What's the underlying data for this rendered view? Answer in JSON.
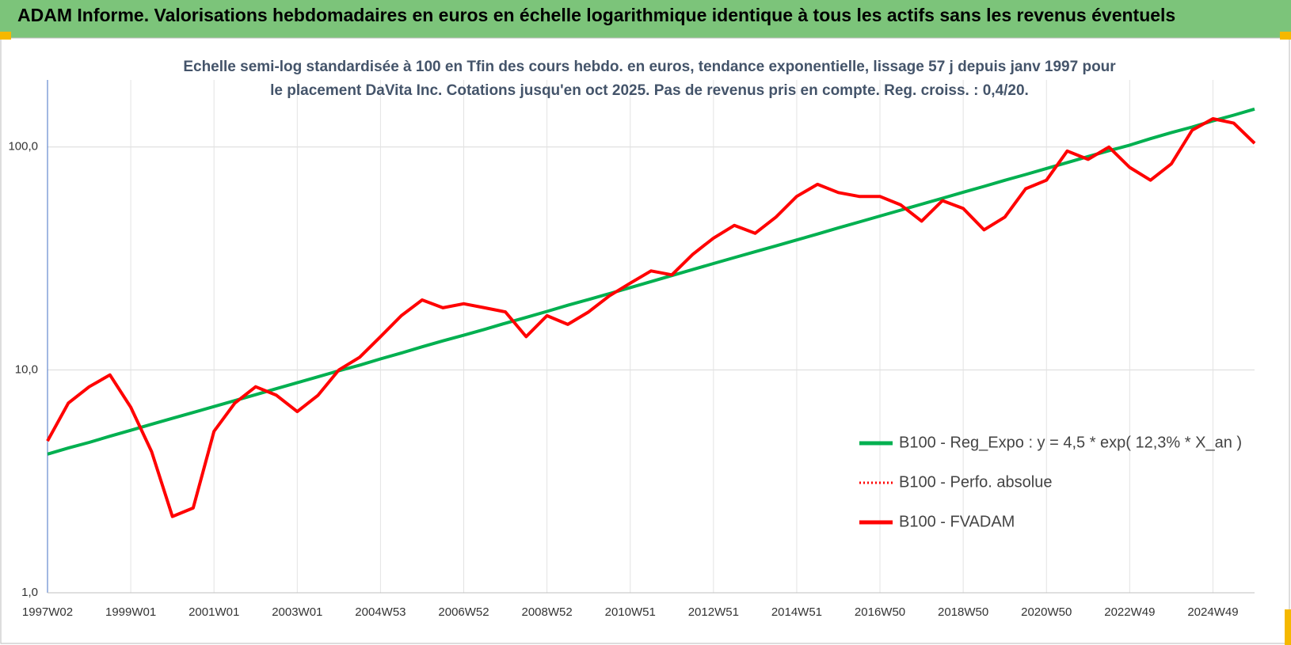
{
  "header": {
    "title": "ADAM Informe. Valorisations hebdomadaires en euros en échelle logarithmique identique à tous les actifs sans les revenus éventuels"
  },
  "chart_data": {
    "type": "line",
    "title": "Echelle semi-log standardisée à 100 en Tfin des cours hebdo. en euros, tendance exponentielle, lissage 57 j depuis janv 1997 pour le placement DaVita Inc. Cotations jusqu'en oct 2025. Pas de revenus pris en compte. Reg. croiss. : 0,4/20.",
    "log_scale": true,
    "grid": true,
    "legend_position": "right",
    "ylim": [
      1,
      200
    ],
    "yticks": [
      {
        "value": 1,
        "label": "1,0"
      },
      {
        "value": 10,
        "label": "10,0"
      },
      {
        "value": 100,
        "label": "100,0"
      }
    ],
    "categories": [
      "1997W02",
      null,
      null,
      null,
      "1999W01",
      null,
      null,
      null,
      "2001W01",
      null,
      null,
      null,
      "2003W01",
      null,
      null,
      null,
      "2004W53",
      null,
      null,
      null,
      "2006W52",
      null,
      null,
      null,
      "2008W52",
      null,
      null,
      null,
      "2010W51",
      null,
      null,
      null,
      "2012W51",
      null,
      null,
      null,
      "2014W51",
      null,
      null,
      null,
      "2016W50",
      null,
      null,
      null,
      "2018W50",
      null,
      null,
      null,
      "2020W50",
      null,
      null,
      null,
      "2022W49",
      null,
      null,
      null,
      "2024W49",
      null,
      null
    ],
    "series": [
      {
        "name": "B100 - Reg_Expo : y = 4,5 * exp( 12,3% *  X_an )",
        "color": "#00b050",
        "style": "solid",
        "values": [
          4.19,
          4.46,
          4.73,
          5.04,
          5.36,
          5.7,
          6.06,
          6.44,
          6.85,
          7.28,
          7.74,
          8.24,
          8.76,
          9.31,
          9.91,
          10.5,
          11.2,
          11.9,
          12.7,
          13.5,
          14.3,
          15.2,
          16.2,
          17.2,
          18.3,
          19.5,
          20.7,
          22.0,
          23.4,
          24.9,
          26.5,
          28.2,
          30.0,
          31.9,
          33.9,
          36.0,
          38.3,
          40.7,
          43.4,
          46.1,
          49.0,
          52.1,
          55.4,
          58.9,
          62.7,
          66.6,
          70.9,
          75.3,
          80.1,
          85.2,
          90.6,
          96.3,
          102,
          109,
          116,
          123,
          131,
          139,
          148
        ]
      },
      {
        "name": "B100 - Perfo. absolue",
        "color": "#ff0000",
        "style": "dotted",
        "values": [
          4.8,
          7.1,
          8.4,
          9.5,
          6.8,
          4.3,
          2.2,
          2.4,
          5.3,
          7.1,
          8.4,
          7.7,
          6.5,
          7.7,
          10,
          11.4,
          14.1,
          17.5,
          20.6,
          19,
          19.8,
          19,
          18.2,
          14.1,
          17.5,
          16,
          18.2,
          21.5,
          24.5,
          27.8,
          26.7,
          33,
          39,
          44.5,
          41,
          48.5,
          60,
          68,
          62.5,
          60,
          60,
          55,
          46.5,
          57.5,
          53,
          42.5,
          48.5,
          65,
          71,
          96,
          88,
          100,
          81,
          71,
          84,
          119,
          134,
          128,
          104
        ]
      },
      {
        "name": "B100 - FVADAM",
        "color": "#ff0000",
        "style": "solid",
        "values": [
          4.8,
          7.1,
          8.4,
          9.5,
          6.8,
          4.3,
          2.2,
          2.4,
          5.3,
          7.1,
          8.4,
          7.7,
          6.5,
          7.7,
          10,
          11.4,
          14.1,
          17.5,
          20.6,
          19,
          19.8,
          19,
          18.2,
          14.1,
          17.5,
          16,
          18.2,
          21.5,
          24.5,
          27.8,
          26.7,
          33,
          39,
          44.5,
          41,
          48.5,
          60,
          68,
          62.5,
          60,
          60,
          55,
          46.5,
          57.5,
          53,
          42.5,
          48.5,
          65,
          71,
          96,
          88,
          100,
          81,
          71,
          84,
          119,
          134,
          128,
          104
        ]
      }
    ]
  }
}
